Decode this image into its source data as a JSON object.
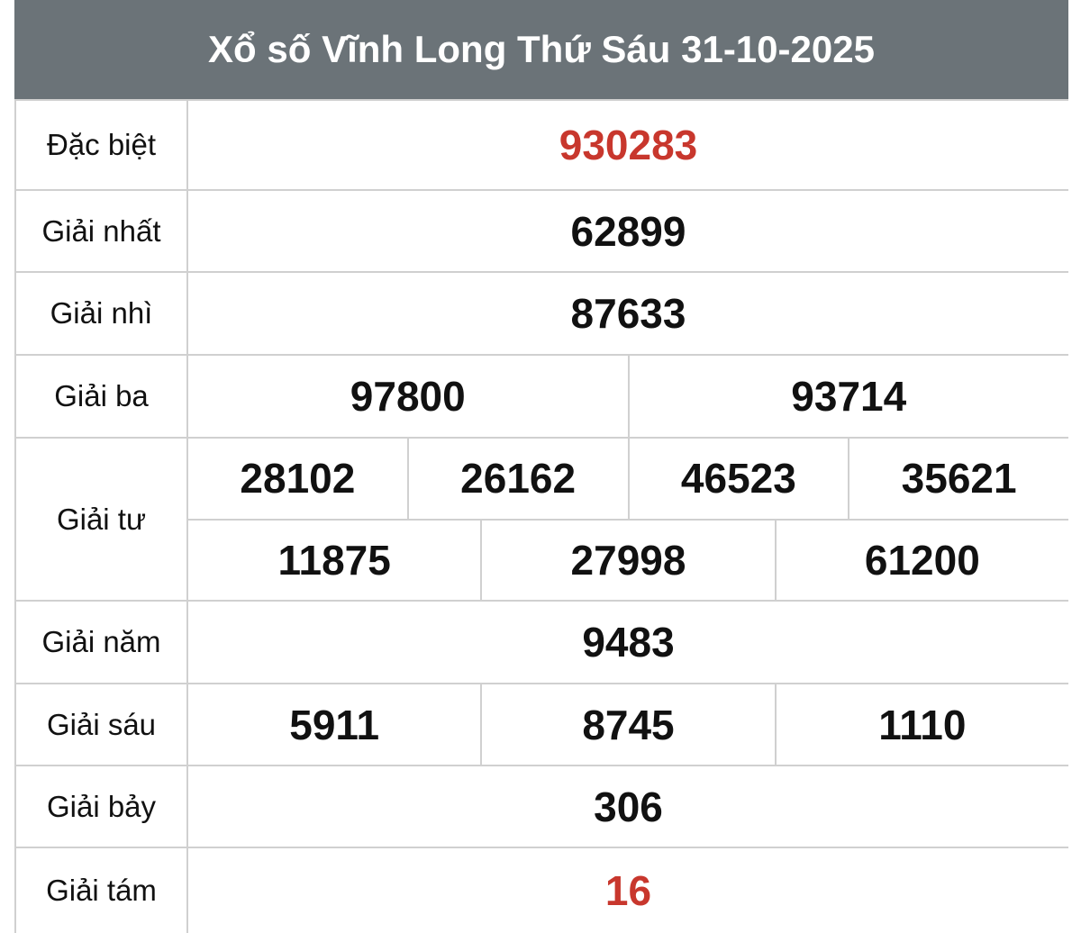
{
  "title": "Xổ số Vĩnh Long Thứ Sáu 31-10-2025",
  "accent_color": "#c8372d",
  "header_color": "#6b7378",
  "prizes": [
    {
      "label": "Đặc biệt",
      "numbers": [
        "930283"
      ]
    },
    {
      "label": "Giải nhất",
      "numbers": [
        "62899"
      ]
    },
    {
      "label": "Giải nhì",
      "numbers": [
        "87633"
      ]
    },
    {
      "label": "Giải ba",
      "numbers": [
        "97800",
        "93714"
      ]
    },
    {
      "label": "Giải tư",
      "numbers": [
        "28102",
        "26162",
        "46523",
        "35621",
        "11875",
        "27998",
        "61200"
      ]
    },
    {
      "label": "Giải năm",
      "numbers": [
        "9483"
      ]
    },
    {
      "label": "Giải sáu",
      "numbers": [
        "5911",
        "8745",
        "1110"
      ]
    },
    {
      "label": "Giải bảy",
      "numbers": [
        "306"
      ]
    },
    {
      "label": "Giải tám",
      "numbers": [
        "16"
      ]
    }
  ]
}
